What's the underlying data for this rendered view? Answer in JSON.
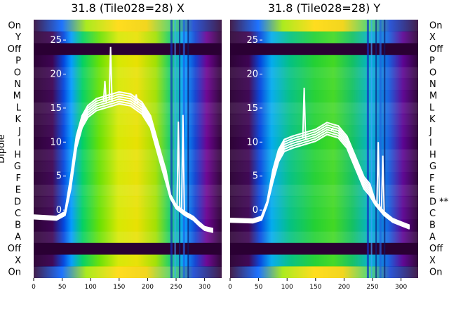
{
  "figure": {
    "ylabel": "Dipole"
  },
  "chart_data": [
    {
      "type": "heatmap",
      "title": "31.8 (Tile028=28) X",
      "rows": [
        "On",
        "Y",
        "Off",
        "P",
        "O",
        "N",
        "M",
        "L",
        "K",
        "J",
        "I",
        "H",
        "G",
        "F",
        "E",
        "D",
        "C",
        "B",
        "A",
        "Off",
        "X",
        "On"
      ],
      "xlim": [
        0,
        330
      ],
      "xticks": [
        0,
        50,
        100,
        150,
        200,
        250,
        300
      ],
      "ylim": [
        -10,
        28
      ],
      "yticks": [
        0,
        5,
        10,
        15,
        20,
        25
      ],
      "overlay_lines": {
        "color": "#ffffff",
        "profile_x": [
          0,
          40,
          55,
          65,
          75,
          85,
          95,
          110,
          130,
          150,
          170,
          190,
          205,
          215,
          225,
          232,
          240,
          250,
          265,
          280,
          290,
          300,
          315
        ],
        "profile_y": [
          -1,
          -1.2,
          -0.5,
          4,
          10,
          13,
          14.5,
          15.5,
          16,
          16.5,
          16.2,
          15,
          13,
          10,
          7,
          5,
          2,
          0.5,
          -0.5,
          -1.2,
          -2,
          -2.7,
          -3
        ],
        "spikes": [
          {
            "x": 135,
            "y": 24
          },
          {
            "x": 125,
            "y": 19
          },
          {
            "x": 180,
            "y": 17
          },
          {
            "x": 262,
            "y": 14
          },
          {
            "x": 254,
            "y": 13
          }
        ]
      }
    },
    {
      "type": "heatmap",
      "title": "31.8 (Tile028=28) Y",
      "rows": [
        "On",
        "X",
        "Off",
        "P",
        "O",
        "N",
        "M",
        "L",
        "K",
        "J",
        "I",
        "H",
        "G",
        "F",
        "E",
        "D **",
        "C",
        "B",
        "A",
        "Off",
        "X",
        "On"
      ],
      "xlim": [
        0,
        330
      ],
      "xticks": [
        0,
        50,
        100,
        150,
        200,
        250,
        300
      ],
      "ylim": [
        -10,
        28
      ],
      "yticks": [
        0,
        5,
        10,
        15,
        20,
        25
      ],
      "overlay_lines": {
        "color": "#ffffff",
        "profile_x": [
          0,
          40,
          55,
          65,
          75,
          85,
          95,
          110,
          130,
          150,
          170,
          190,
          205,
          215,
          225,
          235,
          245,
          255,
          270,
          285,
          300,
          315
        ],
        "profile_y": [
          -1.5,
          -1.6,
          -1.2,
          1,
          5,
          8,
          9.5,
          10,
          10.5,
          11,
          12,
          11.5,
          10,
          8,
          6,
          4,
          3,
          1,
          -0.5,
          -1.5,
          -2,
          -2.5
        ],
        "spikes": [
          {
            "x": 130,
            "y": 18
          },
          {
            "x": 180,
            "y": 12
          },
          {
            "x": 260,
            "y": 10
          },
          {
            "x": 268,
            "y": 8
          }
        ]
      }
    }
  ]
}
